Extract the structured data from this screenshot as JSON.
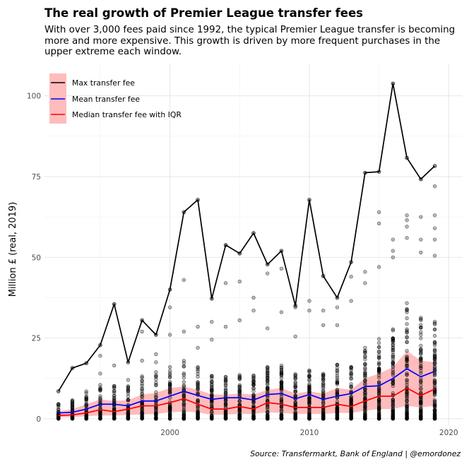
{
  "title": "The real growth of Premier League transfer fees",
  "subtitle": "With over 3,000 fees paid since 1992, the typical Premier League transfer is becoming more and more expensive. This growth is driven by more frequent purchases in the upper extreme each window.",
  "caption": "Source: Transfermarkt, Bank of England | @emordonez",
  "colors": {
    "max": "#000000",
    "mean": "#0000ff",
    "median": "#ff0000",
    "iqr": "#ffbcbc",
    "points": "#000000"
  },
  "chart_data": {
    "type": "line",
    "xlabel": "",
    "ylabel": "Million £ (real, 2019)",
    "xlim": [
      1991,
      2021
    ],
    "ylim": [
      -2,
      110
    ],
    "x_ticks": [
      2000,
      2010,
      2020
    ],
    "y_ticks": [
      0,
      25,
      50,
      75,
      100
    ],
    "grid": true,
    "legend_position": "top-left",
    "legend": [
      "Max transfer fee",
      "Mean transfer fee",
      "Median transfer fee with IQR"
    ],
    "x": [
      1992,
      1993,
      1994,
      1995,
      1996,
      1997,
      1998,
      1999,
      2000,
      2001,
      2002,
      2003,
      2004,
      2005,
      2006,
      2007,
      2008,
      2009,
      2010,
      2011,
      2012,
      2013,
      2014,
      2015,
      2016,
      2017,
      2018,
      2019
    ],
    "series": [
      {
        "name": "Max transfer fee",
        "values": [
          8.5,
          15.7,
          17.2,
          22.8,
          35.5,
          17.5,
          30.5,
          26.0,
          40.0,
          64.0,
          67.8,
          37.2,
          53.8,
          51.2,
          57.5,
          47.8,
          52.0,
          35.0,
          67.8,
          44.2,
          37.5,
          48.5,
          76.2,
          76.5,
          103.8,
          80.8,
          74.2,
          78.3
        ]
      },
      {
        "name": "Mean transfer fee",
        "values": [
          1.8,
          2.0,
          3.0,
          4.5,
          4.5,
          4.0,
          5.5,
          5.5,
          7.0,
          8.5,
          7.2,
          6.0,
          6.5,
          6.5,
          5.8,
          7.5,
          7.8,
          6.2,
          7.5,
          6.0,
          7.0,
          7.8,
          10.0,
          10.2,
          12.5,
          15.5,
          13.0,
          14.7
        ]
      },
      {
        "name": "Median transfer fee with IQR",
        "values": [
          1.0,
          1.2,
          1.8,
          2.8,
          2.2,
          3.0,
          4.0,
          4.0,
          5.0,
          6.2,
          4.5,
          3.0,
          3.0,
          3.8,
          3.0,
          5.0,
          4.5,
          3.5,
          3.5,
          3.5,
          4.5,
          3.8,
          5.5,
          7.0,
          7.0,
          9.5,
          7.2,
          9.2
        ]
      }
    ],
    "iqr_low": [
      0.4,
      0.5,
      0.8,
      1.0,
      1.0,
      1.2,
      1.3,
      1.5,
      2.0,
      2.2,
      2.0,
      1.2,
      1.3,
      1.5,
      1.5,
      2.0,
      1.8,
      1.5,
      1.5,
      1.5,
      1.8,
      1.8,
      2.5,
      3.0,
      3.0,
      4.0,
      3.5,
      4.0
    ],
    "iqr_high": [
      2.2,
      3.0,
      4.5,
      6.0,
      5.5,
      5.8,
      7.5,
      8.0,
      9.5,
      10.0,
      9.0,
      7.5,
      7.5,
      7.8,
      7.5,
      9.0,
      9.5,
      7.8,
      8.5,
      7.8,
      9.5,
      9.0,
      12.5,
      14.0,
      16.0,
      21.0,
      18.0,
      17.5
    ],
    "points_note": "",
    "scatter_extremes": [
      [
        1993,
        4.0
      ],
      [
        1994,
        6.0
      ],
      [
        1995,
        19.5
      ],
      [
        1995,
        14.0
      ],
      [
        1996,
        16.5
      ],
      [
        1997,
        12.0
      ],
      [
        1998,
        18.0
      ],
      [
        1998,
        27.0
      ],
      [
        1999,
        20.0
      ],
      [
        1999,
        17.5
      ],
      [
        2000,
        34.5
      ],
      [
        2000,
        26.0
      ],
      [
        2001,
        43.0
      ],
      [
        2001,
        27.0
      ],
      [
        2002,
        28.5
      ],
      [
        2002,
        22.0
      ],
      [
        2003,
        30.0
      ],
      [
        2003,
        24.5
      ],
      [
        2004,
        42.0
      ],
      [
        2004,
        28.5
      ],
      [
        2005,
        42.5
      ],
      [
        2005,
        30.5
      ],
      [
        2006,
        37.5
      ],
      [
        2006,
        33.5
      ],
      [
        2007,
        45.0
      ],
      [
        2007,
        28.0
      ],
      [
        2008,
        46.5
      ],
      [
        2008,
        33.0
      ],
      [
        2009,
        34.5
      ],
      [
        2009,
        25.5
      ],
      [
        2010,
        36.5
      ],
      [
        2010,
        33.5
      ],
      [
        2011,
        33.5
      ],
      [
        2011,
        29.0
      ],
      [
        2012,
        34.5
      ],
      [
        2012,
        29.0
      ],
      [
        2013,
        44.0
      ],
      [
        2013,
        36.5
      ],
      [
        2014,
        45.5
      ],
      [
        2014,
        42.0
      ],
      [
        2015,
        64.0
      ],
      [
        2015,
        60.5
      ],
      [
        2015,
        47.0
      ],
      [
        2016,
        55.5
      ],
      [
        2016,
        52.0
      ],
      [
        2016,
        50.0
      ],
      [
        2017,
        63.0
      ],
      [
        2017,
        61.5
      ],
      [
        2017,
        59.5
      ],
      [
        2017,
        56.0
      ],
      [
        2018,
        62.5
      ],
      [
        2018,
        55.5
      ],
      [
        2018,
        51.5
      ],
      [
        2019,
        72.0
      ],
      [
        2019,
        63.0
      ],
      [
        2019,
        59.0
      ],
      [
        2019,
        55.5
      ],
      [
        2019,
        50.5
      ]
    ]
  }
}
